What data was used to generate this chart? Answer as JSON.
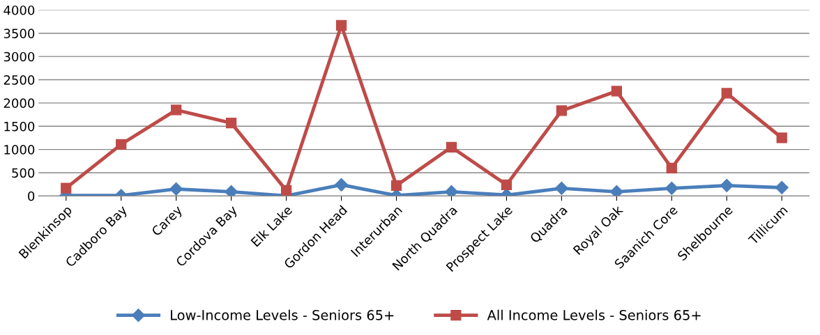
{
  "chart_data": {
    "type": "line",
    "categories": [
      "Blenkinsop",
      "Cadboro Bay",
      "Carey",
      "Cordova Bay",
      "Elk Lake",
      "Gordon Head",
      "Interurban",
      "North Quadra",
      "Prospect Lake",
      "Quadra",
      "Royal Oak",
      "Saanich Core",
      "Shelbourne",
      "Tillicum"
    ],
    "series": [
      {
        "name": "Low-Income Levels - Seniors 65+",
        "color": "#4a7ebb",
        "marker": "diamond",
        "values": [
          10,
          10,
          150,
          90,
          5,
          240,
          10,
          90,
          20,
          165,
          90,
          165,
          225,
          180
        ]
      },
      {
        "name": "All Income Levels - Seniors 65+",
        "color": "#be4b48",
        "marker": "square",
        "values": [
          170,
          1110,
          1850,
          1570,
          120,
          3670,
          225,
          1050,
          240,
          1835,
          2255,
          600,
          2210,
          1250
        ]
      }
    ],
    "ylim": [
      0,
      4000
    ],
    "yticks": [
      0,
      500,
      1000,
      1500,
      2000,
      2500,
      3000,
      3500,
      4000
    ],
    "grid": "y",
    "legend": "bottom",
    "line_style": "solid"
  }
}
